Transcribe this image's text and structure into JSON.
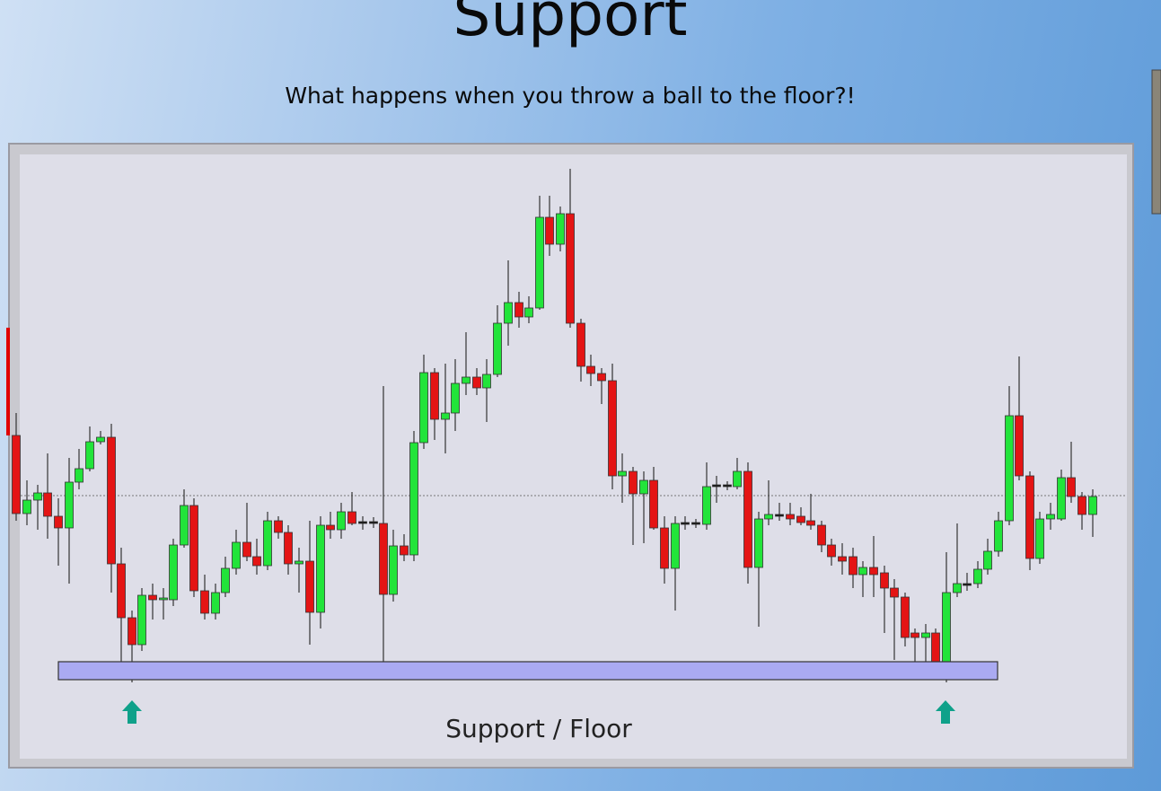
{
  "slide": {
    "title": "Support",
    "subtitle": "What happens when you throw a ball to the floor?!",
    "chart_label": "Support / Floor"
  }
}
